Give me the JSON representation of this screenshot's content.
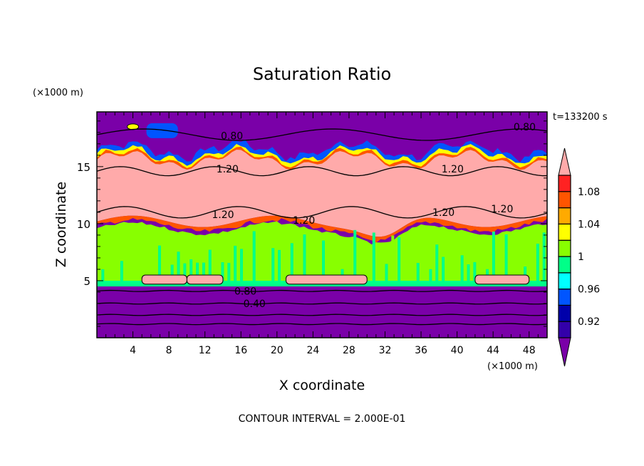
{
  "chart_data": {
    "type": "heatmap",
    "title": "Saturation Ratio",
    "xlabel": "X coordinate",
    "ylabel": "Z coordinate",
    "x_unit": "(×1000 m)",
    "y_unit": "(×1000 m)",
    "time_label": "t=133200 s",
    "footer": "CONTOUR INTERVAL = 2.000E-01",
    "xlim": [
      0,
      50
    ],
    "ylim": [
      0,
      19.8
    ],
    "x_ticks": [
      4,
      8,
      12,
      16,
      20,
      24,
      28,
      32,
      36,
      40,
      44,
      48
    ],
    "x_tick_labels": [
      "4",
      "8",
      "12",
      "16",
      "20",
      "24",
      "28",
      "32",
      "36",
      "40",
      "44",
      "48"
    ],
    "y_ticks": [
      5,
      10,
      15
    ],
    "y_tick_labels": [
      "5",
      "10",
      "15"
    ],
    "colorbar": {
      "levels": [
        0.9,
        0.92,
        0.94,
        0.96,
        0.98,
        1.0,
        1.02,
        1.04,
        1.06,
        1.08,
        1.1
      ],
      "labels": [
        "0.92",
        "0.96",
        "1",
        "1.04",
        "1.08"
      ],
      "label_values": [
        0.92,
        0.96,
        1.0,
        1.04,
        1.08
      ],
      "colors": [
        "#3300aa",
        "#0000aa",
        "#0055ff",
        "#00ffff",
        "#00ff88",
        "#88ff00",
        "#ffff00",
        "#ffaa00",
        "#ff5500",
        "#ff2222"
      ],
      "under_color": "#7a00a8",
      "over_color": "#ffaaaa"
    },
    "contour_labels": [
      {
        "text": "0.80",
        "x": 15,
        "z": 17.7
      },
      {
        "text": "0.80",
        "x": 47.5,
        "z": 18.5
      },
      {
        "text": "1.20",
        "x": 14.5,
        "z": 14.8
      },
      {
        "text": "1.20",
        "x": 39.5,
        "z": 14.8
      },
      {
        "text": "1.20",
        "x": 14,
        "z": 10.8
      },
      {
        "text": "1.20",
        "x": 23,
        "z": 10.3
      },
      {
        "text": "1.20",
        "x": 38.5,
        "z": 11.0
      },
      {
        "text": "1.20",
        "x": 45,
        "z": 11.3
      },
      {
        "text": "0.80",
        "x": 16.5,
        "z": 4.1
      },
      {
        "text": "0.40",
        "x": 17.5,
        "z": 3.0
      }
    ]
  }
}
